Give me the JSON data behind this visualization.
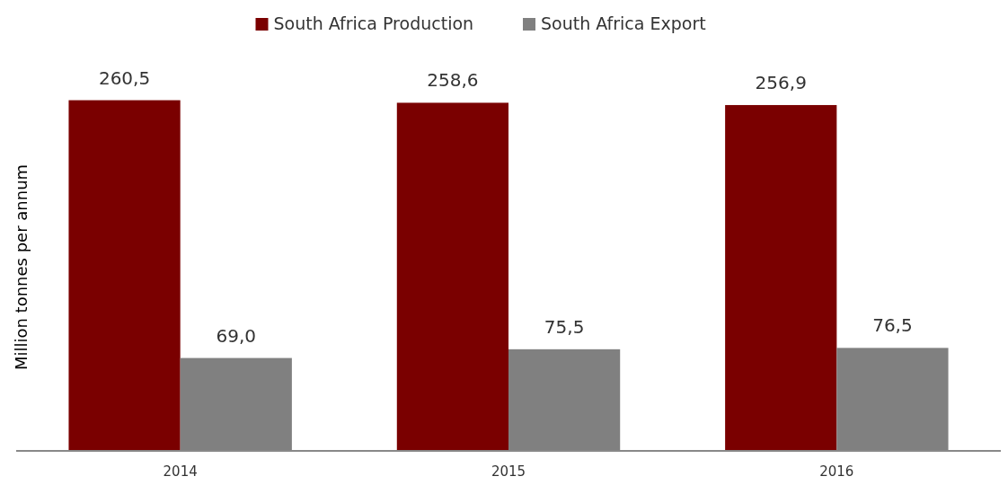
{
  "chart_data": {
    "type": "bar",
    "ylabel": "Million tonnes per annum",
    "categories": [
      "2014",
      "2015",
      "2016"
    ],
    "series": [
      {
        "name": "South Africa Production",
        "color": "#7a0000",
        "values": [
          260.5,
          258.6,
          256.9
        ],
        "value_labels": [
          "260,5",
          "258,6",
          "256,9"
        ]
      },
      {
        "name": "South Africa Export",
        "color": "#808080",
        "values": [
          69.0,
          75.5,
          76.5
        ],
        "value_labels": [
          "69,0",
          "75,5",
          "76,5"
        ]
      }
    ],
    "legend": "top"
  }
}
